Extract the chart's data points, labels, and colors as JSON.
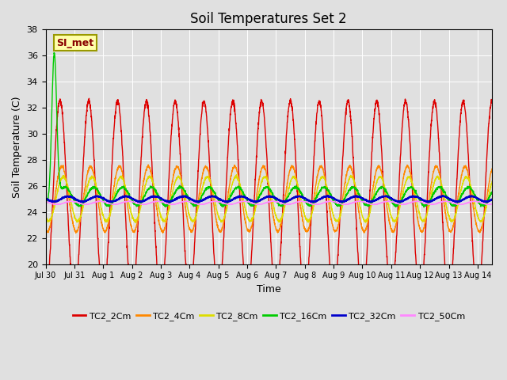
{
  "title": "Soil Temperatures Set 2",
  "xlabel": "Time",
  "ylabel": "Soil Temperature (C)",
  "ylim": [
    20,
    38
  ],
  "yticks": [
    20,
    22,
    24,
    26,
    28,
    30,
    32,
    34,
    36,
    38
  ],
  "annotation": "SI_met",
  "bg_color": "#e0e0e0",
  "series_colors": {
    "TC2_2Cm": "#dd0000",
    "TC2_4Cm": "#ff8800",
    "TC2_8Cm": "#dddd00",
    "TC2_16Cm": "#00cc00",
    "TC2_32Cm": "#0000cc",
    "TC2_50Cm": "#ff88ff"
  },
  "xtick_labels": [
    "Jul 30",
    "Jul 31",
    "Aug 1",
    "Aug 2",
    "Aug 3",
    "Aug 4",
    "Aug 5",
    "Aug 6",
    "Aug 7",
    "Aug 8",
    "Aug 9",
    "Aug 10",
    "Aug 11",
    "Aug 12",
    "Aug 13",
    "Aug 14"
  ]
}
